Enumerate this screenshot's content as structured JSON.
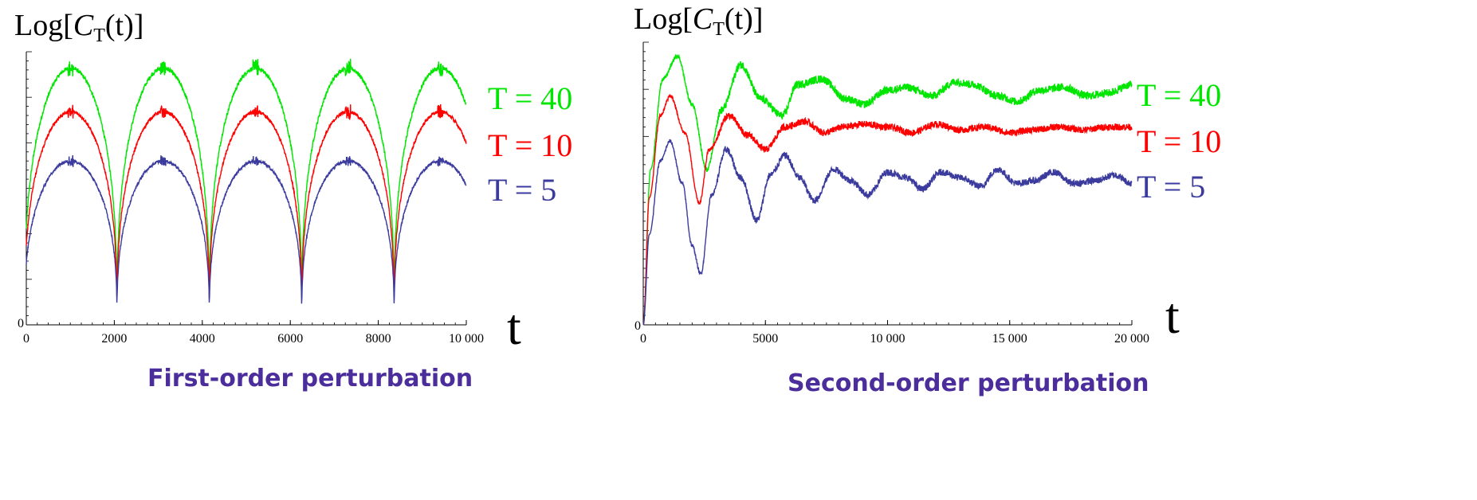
{
  "colors": {
    "green": "#00e600",
    "red": "#ff0000",
    "blue": "#3b3b9e",
    "caption": "#4b2d9b"
  },
  "chart_data": [
    {
      "type": "line",
      "title": "First-order perturbation",
      "ylabel_prefix": "Log[",
      "ylabel_C": "C",
      "ylabel_sub": "T",
      "ylabel_suffix": "(t)]",
      "xlabel": "t",
      "xlim": [
        0,
        10000
      ],
      "ylim": [
        0,
        1
      ],
      "x_ticks": [
        0,
        2000,
        4000,
        6000,
        8000,
        10000
      ],
      "x_tick_labels": [
        "0",
        "2000",
        "4000",
        "6000",
        "8000",
        "10 000"
      ],
      "y_tick_labels": [
        "0"
      ],
      "period": 2100,
      "peak_positions": [
        1010,
        3110,
        5210,
        7310,
        9410
      ],
      "series": [
        {
          "name": "T = 40",
          "color": "#00e600",
          "peak": 0.94,
          "noise": 0.015
        },
        {
          "name": "T = 10",
          "color": "#ff0000",
          "peak": 0.78,
          "noise": 0.012
        },
        {
          "name": "T = 5",
          "color": "#3b3b9e",
          "peak": 0.6,
          "noise": 0.01
        }
      ]
    },
    {
      "type": "line",
      "title": "Second-order perturbation",
      "ylabel_prefix": "Log[",
      "ylabel_C": "C",
      "ylabel_sub": "T",
      "ylabel_suffix": "(t)]",
      "xlabel": "t",
      "xlim": [
        0,
        20000
      ],
      "ylim": [
        0,
        1
      ],
      "x_ticks": [
        0,
        5000,
        10000,
        15000,
        20000
      ],
      "x_tick_labels": [
        "0",
        "5000",
        "10 000",
        "15 000",
        "20 000"
      ],
      "y_tick_labels": [
        "0"
      ],
      "series": [
        {
          "name": "T = 40",
          "color": "#00e600",
          "first_peak_t": 1400,
          "first_peak": 0.95,
          "points": [
            [
              0,
              0
            ],
            [
              300,
              0.55
            ],
            [
              800,
              0.87
            ],
            [
              1400,
              0.95
            ],
            [
              2000,
              0.78
            ],
            [
              2600,
              0.55
            ],
            [
              3200,
              0.76
            ],
            [
              4000,
              0.92
            ],
            [
              4800,
              0.8
            ],
            [
              5700,
              0.74
            ],
            [
              6300,
              0.85
            ],
            [
              7300,
              0.87
            ],
            [
              8300,
              0.8
            ],
            [
              9000,
              0.78
            ],
            [
              10000,
              0.83
            ],
            [
              10800,
              0.84
            ],
            [
              11800,
              0.81
            ],
            [
              12800,
              0.86
            ],
            [
              13500,
              0.85
            ],
            [
              14500,
              0.81
            ],
            [
              15300,
              0.79
            ],
            [
              16200,
              0.83
            ],
            [
              17200,
              0.84
            ],
            [
              18200,
              0.81
            ],
            [
              19000,
              0.82
            ],
            [
              20000,
              0.85
            ]
          ],
          "noise": 0.014
        },
        {
          "name": "T = 10",
          "color": "#ff0000",
          "first_peak_t": 1100,
          "first_peak": 0.81,
          "points": [
            [
              0,
              0
            ],
            [
              250,
              0.45
            ],
            [
              700,
              0.74
            ],
            [
              1100,
              0.81
            ],
            [
              1700,
              0.68
            ],
            [
              2300,
              0.43
            ],
            [
              2700,
              0.62
            ],
            [
              3500,
              0.74
            ],
            [
              4300,
              0.67
            ],
            [
              5000,
              0.62
            ],
            [
              5800,
              0.7
            ],
            [
              6600,
              0.72
            ],
            [
              7400,
              0.68
            ],
            [
              8200,
              0.7
            ],
            [
              9000,
              0.71
            ],
            [
              10000,
              0.7
            ],
            [
              11000,
              0.68
            ],
            [
              12000,
              0.71
            ],
            [
              13000,
              0.69
            ],
            [
              14000,
              0.7
            ],
            [
              15000,
              0.68
            ],
            [
              16000,
              0.69
            ],
            [
              17000,
              0.7
            ],
            [
              18000,
              0.69
            ],
            [
              19000,
              0.7
            ],
            [
              20000,
              0.7
            ]
          ],
          "noise": 0.012
        },
        {
          "name": "T = 5",
          "color": "#3b3b9e",
          "first_peak_t": 1100,
          "first_peak": 0.65,
          "points": [
            [
              0,
              0
            ],
            [
              250,
              0.32
            ],
            [
              700,
              0.58
            ],
            [
              1100,
              0.65
            ],
            [
              1600,
              0.5
            ],
            [
              2000,
              0.28
            ],
            [
              2350,
              0.18
            ],
            [
              2800,
              0.46
            ],
            [
              3400,
              0.62
            ],
            [
              4000,
              0.52
            ],
            [
              4650,
              0.37
            ],
            [
              5200,
              0.53
            ],
            [
              5800,
              0.6
            ],
            [
              6400,
              0.52
            ],
            [
              7000,
              0.44
            ],
            [
              7800,
              0.55
            ],
            [
              8500,
              0.51
            ],
            [
              9200,
              0.46
            ],
            [
              10000,
              0.54
            ],
            [
              10800,
              0.52
            ],
            [
              11400,
              0.48
            ],
            [
              12200,
              0.54
            ],
            [
              13000,
              0.52
            ],
            [
              13800,
              0.49
            ],
            [
              14500,
              0.55
            ],
            [
              15300,
              0.5
            ],
            [
              16000,
              0.51
            ],
            [
              16800,
              0.54
            ],
            [
              17600,
              0.5
            ],
            [
              18500,
              0.51
            ],
            [
              19300,
              0.53
            ],
            [
              20000,
              0.5
            ]
          ],
          "noise": 0.012
        }
      ]
    }
  ]
}
